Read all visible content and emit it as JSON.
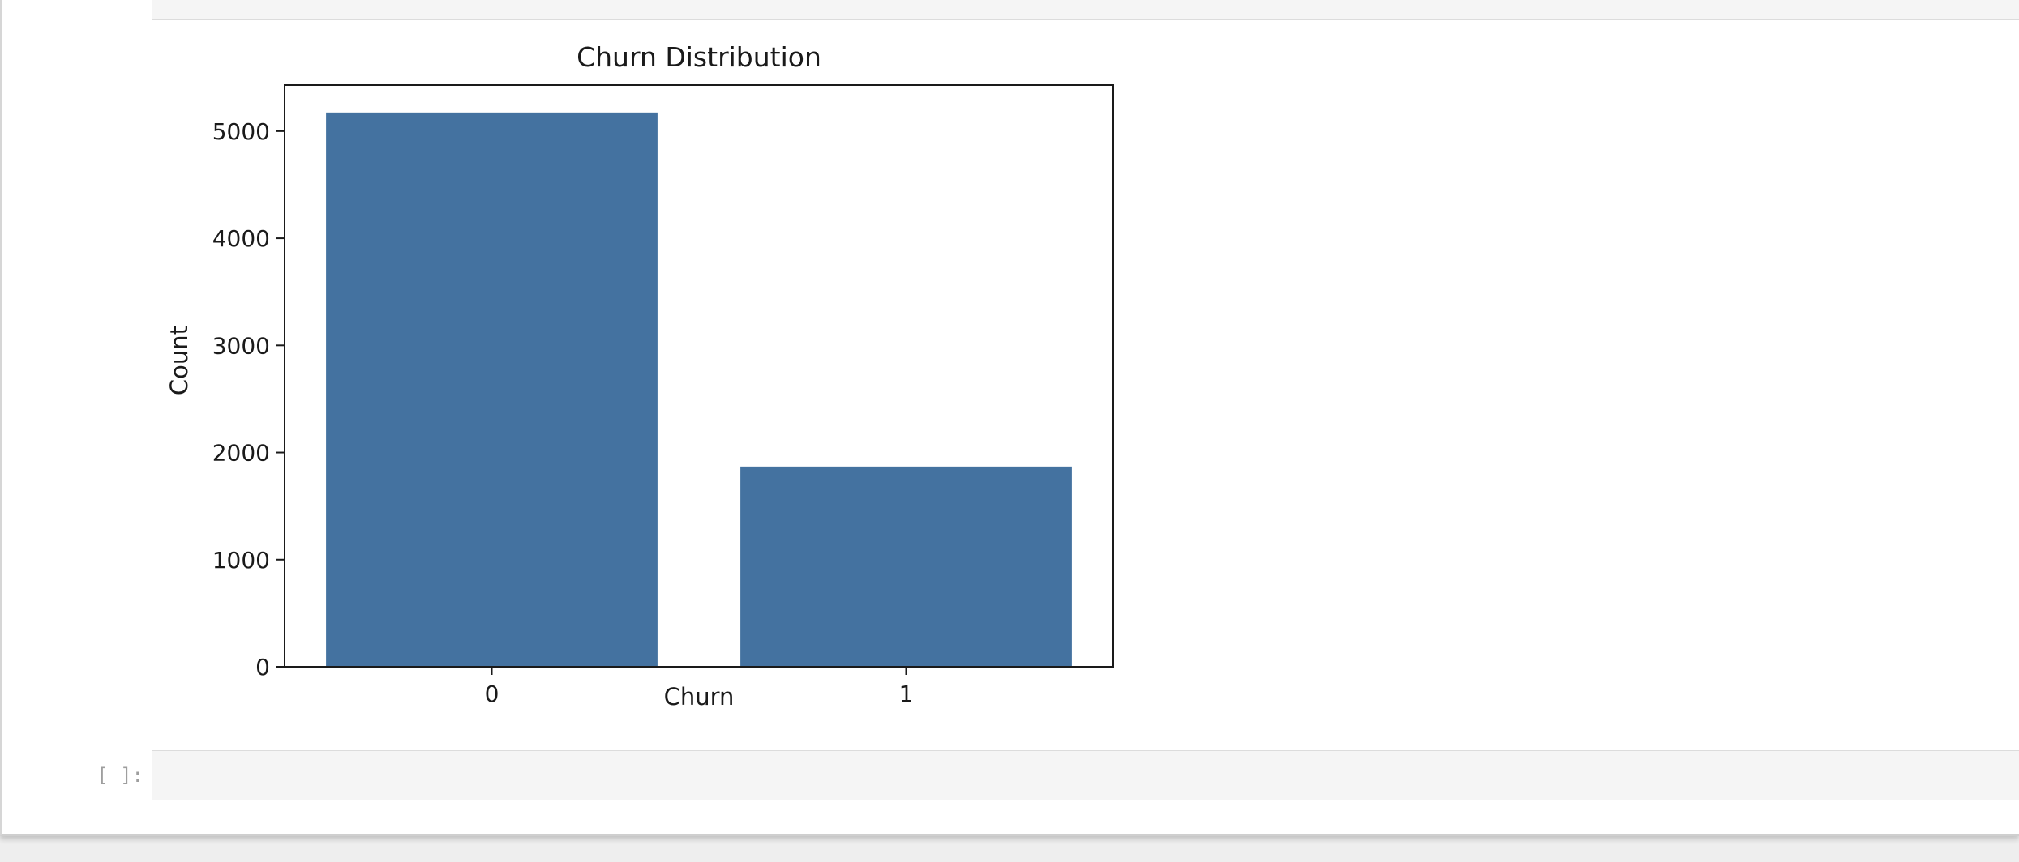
{
  "notebook": {
    "empty_cell_prompt": "[ ]:"
  },
  "chart_data": {
    "type": "bar",
    "title": "Churn Distribution",
    "xlabel": "Churn",
    "ylabel": "Count",
    "categories": [
      "0",
      "1"
    ],
    "values": [
      5174,
      1869
    ],
    "ylim": [
      0,
      5430
    ],
    "yticks": [
      0,
      1000,
      2000,
      3000,
      4000,
      5000
    ],
    "grid": false,
    "legend": "none",
    "bar_color": "#4472a0"
  }
}
